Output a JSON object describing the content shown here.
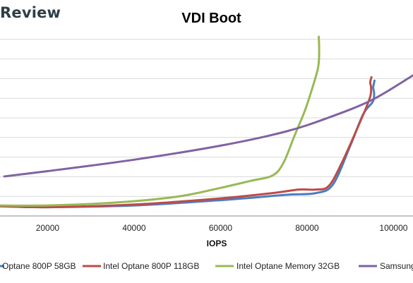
{
  "brand": "Review",
  "chart_data": {
    "type": "line",
    "title": "VDI Boot",
    "xlabel": "IOPS",
    "ylabel": "",
    "xlim": [
      9000,
      104500
    ],
    "ylim": [
      0,
      10
    ],
    "x_ticks": [
      20000,
      40000,
      60000,
      80000,
      100000
    ],
    "grid": true,
    "legend_position": "bottom",
    "series": [
      {
        "name": "Optane 800P 58GB",
        "color": "#4a7ebf",
        "points": [
          [
            9000,
            0.55
          ],
          [
            20000,
            0.5
          ],
          [
            40000,
            0.6
          ],
          [
            60000,
            0.9
          ],
          [
            75000,
            1.2
          ],
          [
            82000,
            1.3
          ],
          [
            86000,
            1.8
          ],
          [
            90000,
            4.0
          ],
          [
            93000,
            5.8
          ],
          [
            95200,
            6.5
          ],
          [
            95500,
            7.0
          ],
          [
            95300,
            7.3
          ],
          [
            95600,
            7.7
          ]
        ]
      },
      {
        "name": "Intel Optane 800P 118GB",
        "color": "#be4b48",
        "points": [
          [
            9000,
            0.55
          ],
          [
            20000,
            0.5
          ],
          [
            40000,
            0.65
          ],
          [
            60000,
            1.0
          ],
          [
            72000,
            1.3
          ],
          [
            78000,
            1.5
          ],
          [
            82000,
            1.5
          ],
          [
            85000,
            1.7
          ],
          [
            88000,
            3.0
          ],
          [
            92000,
            5.2
          ],
          [
            94500,
            6.7
          ],
          [
            94800,
            7.3
          ],
          [
            94600,
            7.6
          ],
          [
            94900,
            7.9
          ]
        ]
      },
      {
        "name": "Intel Optane Memory 32GB",
        "color": "#98b954",
        "points": [
          [
            9000,
            0.6
          ],
          [
            20000,
            0.6
          ],
          [
            35000,
            0.75
          ],
          [
            50000,
            1.1
          ],
          [
            60000,
            1.6
          ],
          [
            67000,
            2.0
          ],
          [
            72000,
            2.3
          ],
          [
            74500,
            3.0
          ],
          [
            77000,
            4.5
          ],
          [
            79500,
            6.0
          ],
          [
            81500,
            7.5
          ],
          [
            82600,
            8.5
          ],
          [
            82800,
            9.4
          ],
          [
            82700,
            10.2
          ]
        ]
      },
      {
        "name": "Samsung",
        "color": "#7f63a1",
        "points": [
          [
            10000,
            2.25
          ],
          [
            20000,
            2.55
          ],
          [
            40000,
            3.2
          ],
          [
            60000,
            4.0
          ],
          [
            75000,
            4.8
          ],
          [
            85000,
            5.6
          ],
          [
            95000,
            6.6
          ],
          [
            104500,
            8.0
          ]
        ]
      }
    ]
  }
}
